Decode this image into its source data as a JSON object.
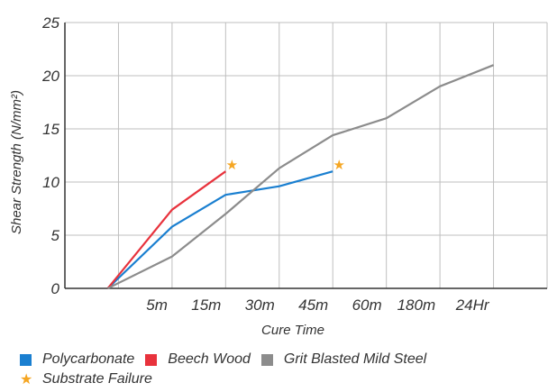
{
  "chart_data": {
    "type": "line",
    "xlabel": "Cure Time",
    "ylabel": "Shear Strength (N/mm²)",
    "categories": [
      "",
      "5m",
      "15m",
      "30m",
      "45m",
      "60m",
      "180m",
      "24Hr",
      ""
    ],
    "yticks": [
      "0",
      "5",
      "10",
      "15",
      "20",
      "25"
    ],
    "ylim": [
      0,
      25
    ],
    "grid": true,
    "series": [
      {
        "name": "Polycarbonate",
        "color": "#1a7fd0",
        "points": [
          [
            0.8,
            0
          ],
          [
            2.0,
            5.8
          ],
          [
            3.0,
            8.8
          ],
          [
            3.5,
            9.2
          ],
          [
            4.0,
            9.6
          ],
          [
            5.0,
            11.0
          ]
        ],
        "substrate_failure": true
      },
      {
        "name": "Beech Wood",
        "color": "#e8323c",
        "points": [
          [
            0.8,
            0
          ],
          [
            2.0,
            7.4
          ],
          [
            3.0,
            11.0
          ]
        ],
        "substrate_failure": true
      },
      {
        "name": "Grit Blasted Mild Steel",
        "color": "#8c8c8c",
        "points": [
          [
            0.8,
            0
          ],
          [
            2.0,
            3.0
          ],
          [
            3.0,
            7.0
          ],
          [
            4.0,
            11.3
          ],
          [
            5.0,
            14.4
          ],
          [
            6.0,
            16.0
          ],
          [
            7.0,
            19.0
          ],
          [
            8.0,
            21.0
          ]
        ],
        "substrate_failure": false
      }
    ],
    "legend": {
      "position": "bottom-left",
      "items": [
        {
          "label": "Polycarbonate",
          "color": "#1a7fd0"
        },
        {
          "label": "Beech Wood",
          "color": "#e8323c"
        },
        {
          "label": "Grit Blasted Mild Steel",
          "color": "#8c8c8c"
        }
      ],
      "failure_label": "Substrate Failure",
      "failure_color": "#f5a623"
    }
  }
}
